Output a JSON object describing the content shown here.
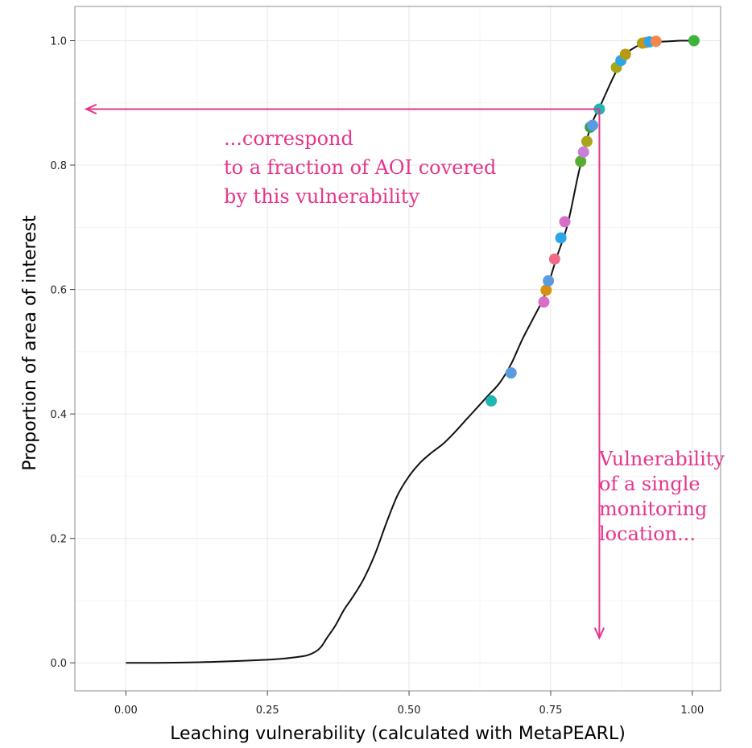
{
  "chart_data": {
    "type": "scatter",
    "xlabel": "Leaching vulnerability (calculated with MetaPEARL)",
    "ylabel": "Proportion of area of interest",
    "xlim": [
      -0.09,
      1.05
    ],
    "ylim": [
      -0.045,
      1.055
    ],
    "x_ticks": [
      0,
      0.25,
      0.5,
      0.75,
      1
    ],
    "x_tick_labels": [
      "0.00",
      "0.25",
      "0.50",
      "0.75",
      "1.00"
    ],
    "y_ticks": [
      0,
      0.2,
      0.4,
      0.6,
      0.8,
      1
    ],
    "y_tick_labels": [
      "0.0",
      "0.2",
      "0.4",
      "0.6",
      "0.8",
      "1.0"
    ],
    "grid": true,
    "curve": {
      "x": [
        0,
        0.05,
        0.1,
        0.15,
        0.2,
        0.25,
        0.28,
        0.3,
        0.32,
        0.335,
        0.345,
        0.355,
        0.37,
        0.385,
        0.4,
        0.42,
        0.44,
        0.46,
        0.48,
        0.5,
        0.52,
        0.54,
        0.56,
        0.58,
        0.6,
        0.62,
        0.64,
        0.66,
        0.68,
        0.7,
        0.72,
        0.74,
        0.76,
        0.78,
        0.8,
        0.82,
        0.84,
        0.86,
        0.88,
        0.9,
        0.92,
        0.94,
        0.96,
        0.98,
        1.0
      ],
      "y": [
        0,
        0,
        0.0005,
        0.0015,
        0.003,
        0.005,
        0.007,
        0.009,
        0.012,
        0.018,
        0.026,
        0.04,
        0.06,
        0.085,
        0.105,
        0.135,
        0.175,
        0.225,
        0.27,
        0.3,
        0.322,
        0.338,
        0.352,
        0.37,
        0.39,
        0.41,
        0.43,
        0.45,
        0.48,
        0.52,
        0.555,
        0.592,
        0.65,
        0.705,
        0.79,
        0.86,
        0.9,
        0.94,
        0.975,
        0.99,
        0.996,
        0.998,
        0.999,
        1.0,
        1.0
      ]
    },
    "points": [
      {
        "x": 0.645,
        "y": 0.421,
        "color": "#1fb5b0"
      },
      {
        "x": 0.68,
        "y": 0.466,
        "color": "#5b9be0"
      },
      {
        "x": 0.738,
        "y": 0.58,
        "color": "#d76fc8"
      },
      {
        "x": 0.742,
        "y": 0.599,
        "color": "#d98f12"
      },
      {
        "x": 0.746,
        "y": 0.614,
        "color": "#5b9be0"
      },
      {
        "x": 0.757,
        "y": 0.649,
        "color": "#ee6a88"
      },
      {
        "x": 0.768,
        "y": 0.683,
        "color": "#2aa7e8"
      },
      {
        "x": 0.775,
        "y": 0.709,
        "color": "#d76fc8"
      },
      {
        "x": 0.803,
        "y": 0.806,
        "color": "#55ae2e"
      },
      {
        "x": 0.808,
        "y": 0.821,
        "color": "#c97ed8"
      },
      {
        "x": 0.814,
        "y": 0.838,
        "color": "#a7a61a"
      },
      {
        "x": 0.82,
        "y": 0.861,
        "color": "#2fa24f"
      },
      {
        "x": 0.824,
        "y": 0.864,
        "color": "#5b9be0"
      },
      {
        "x": 0.836,
        "y": 0.89,
        "color": "#1fb5b0"
      },
      {
        "x": 0.866,
        "y": 0.957,
        "color": "#a7a61a"
      },
      {
        "x": 0.874,
        "y": 0.968,
        "color": "#2aa7e8"
      },
      {
        "x": 0.882,
        "y": 0.978,
        "color": "#b79a14"
      },
      {
        "x": 0.912,
        "y": 0.996,
        "color": "#a7a61a"
      },
      {
        "x": 0.918,
        "y": 0.997,
        "color": "#d98f12"
      },
      {
        "x": 0.924,
        "y": 0.998,
        "color": "#2aa7e8"
      },
      {
        "x": 0.936,
        "y": 0.999,
        "color": "#f5874e"
      },
      {
        "x": 1.003,
        "y": 1.0,
        "color": "#3db33d"
      }
    ],
    "arrow_color": "#e6358b",
    "arrows": [
      {
        "from": [
          0.836,
          0.89
        ],
        "to": [
          -0.07,
          0.89
        ]
      },
      {
        "from": [
          0.836,
          0.89
        ],
        "to": [
          0.836,
          0.04
        ]
      }
    ],
    "annotations": [
      {
        "lines": [
          "...correspond",
          "to a fraction of AOI covered",
          "by this vulnerability"
        ]
      },
      {
        "lines": [
          "Vulnerability",
          "of a single",
          "monitoring",
          "location..."
        ]
      }
    ]
  }
}
